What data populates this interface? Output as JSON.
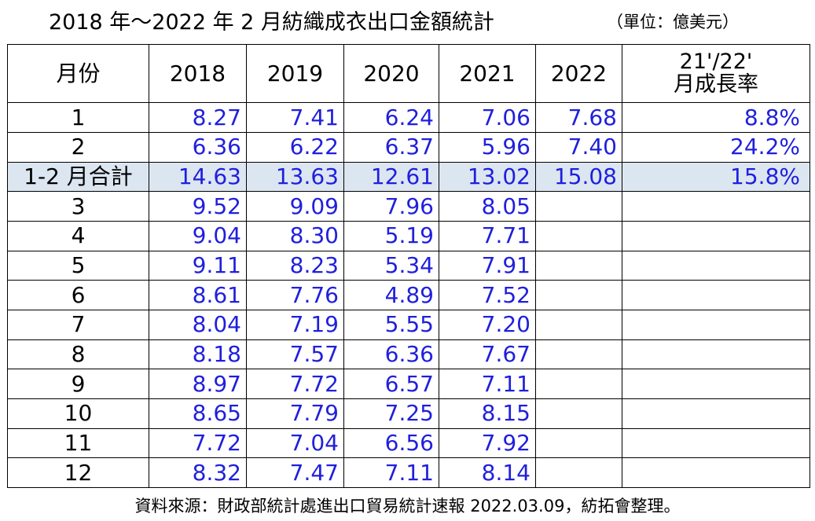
{
  "title": {
    "main": "2018 年～2022 年 2 月紡織成衣出口金額統計",
    "unit": "（單位：億美元）"
  },
  "table": {
    "headers": {
      "month": "月份",
      "y2018": "2018",
      "y2019": "2019",
      "y2020": "2020",
      "y2021": "2021",
      "y2022": "2022",
      "rate_line1": "21'/22'",
      "rate_line2": "月成長率"
    },
    "rows": [
      {
        "label": "1",
        "v2018": "8.27",
        "v2019": "7.41",
        "v2020": "6.24",
        "v2021": "7.06",
        "v2022": "7.68",
        "rate": "8.8%"
      },
      {
        "label": "2",
        "v2018": "6.36",
        "v2019": "6.22",
        "v2020": "6.37",
        "v2021": "5.96",
        "v2022": "7.40",
        "rate": "24.2%"
      },
      {
        "label": "1-2 月合計",
        "v2018": "14.63",
        "v2019": "13.63",
        "v2020": "12.61",
        "v2021": "13.02",
        "v2022": "15.08",
        "rate": "15.8%"
      },
      {
        "label": "3",
        "v2018": "9.52",
        "v2019": "9.09",
        "v2020": "7.96",
        "v2021": "8.05",
        "v2022": "",
        "rate": ""
      },
      {
        "label": "4",
        "v2018": "9.04",
        "v2019": "8.30",
        "v2020": "5.19",
        "v2021": "7.71",
        "v2022": "",
        "rate": ""
      },
      {
        "label": "5",
        "v2018": "9.11",
        "v2019": "8.23",
        "v2020": "5.34",
        "v2021": "7.91",
        "v2022": "",
        "rate": ""
      },
      {
        "label": "6",
        "v2018": "8.61",
        "v2019": "7.76",
        "v2020": "4.89",
        "v2021": "7.52",
        "v2022": "",
        "rate": ""
      },
      {
        "label": "7",
        "v2018": "8.04",
        "v2019": "7.19",
        "v2020": "5.55",
        "v2021": "7.20",
        "v2022": "",
        "rate": ""
      },
      {
        "label": "8",
        "v2018": "8.18",
        "v2019": "7.57",
        "v2020": "6.36",
        "v2021": "7.67",
        "v2022": "",
        "rate": ""
      },
      {
        "label": "9",
        "v2018": "8.97",
        "v2019": "7.72",
        "v2020": "6.57",
        "v2021": "7.11",
        "v2022": "",
        "rate": ""
      },
      {
        "label": "10",
        "v2018": "8.65",
        "v2019": "7.79",
        "v2020": "7.25",
        "v2021": "8.15",
        "v2022": "",
        "rate": ""
      },
      {
        "label": "11",
        "v2018": "7.72",
        "v2019": "7.04",
        "v2020": "6.56",
        "v2021": "7.92",
        "v2022": "",
        "rate": ""
      },
      {
        "label": "12",
        "v2018": "8.32",
        "v2019": "7.47",
        "v2020": "7.11",
        "v2021": "8.14",
        "v2022": "",
        "rate": ""
      }
    ]
  },
  "footer": "資料來源：財政部統計處進出口貿易統計速報 2022.03.09，紡拓會整理。",
  "colors": {
    "value_text": "#1f1fdd",
    "sum_row_bg": "#dce6f1"
  }
}
